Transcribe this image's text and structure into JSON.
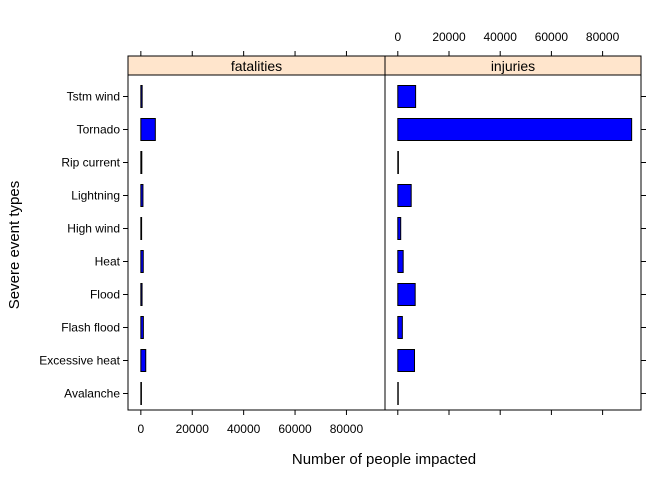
{
  "chart_data": {
    "type": "bar",
    "orientation": "horizontal",
    "xlabel": "Number of people impacted",
    "ylabel": "Severe event types",
    "xlim": [
      -5000,
      95000
    ],
    "x_ticks": [
      0,
      20000,
      40000,
      60000,
      80000
    ],
    "categories": [
      "Avalanche",
      "Excessive heat",
      "Flash flood",
      "Flood",
      "Heat",
      "High wind",
      "Lightning",
      "Rip current",
      "Tornado",
      "Tstm wind"
    ],
    "panels": [
      {
        "name": "fatalities",
        "values": [
          224,
          1903,
          978,
          470,
          937,
          293,
          816,
          368,
          5633,
          504
        ]
      },
      {
        "name": "injuries",
        "values": [
          170,
          6525,
          1777,
          6789,
          2100,
          1137,
          5230,
          232,
          91346,
          6957
        ]
      }
    ],
    "bar_color": "#0000ff",
    "strip_color": "#ffe5cc",
    "grid": false
  }
}
